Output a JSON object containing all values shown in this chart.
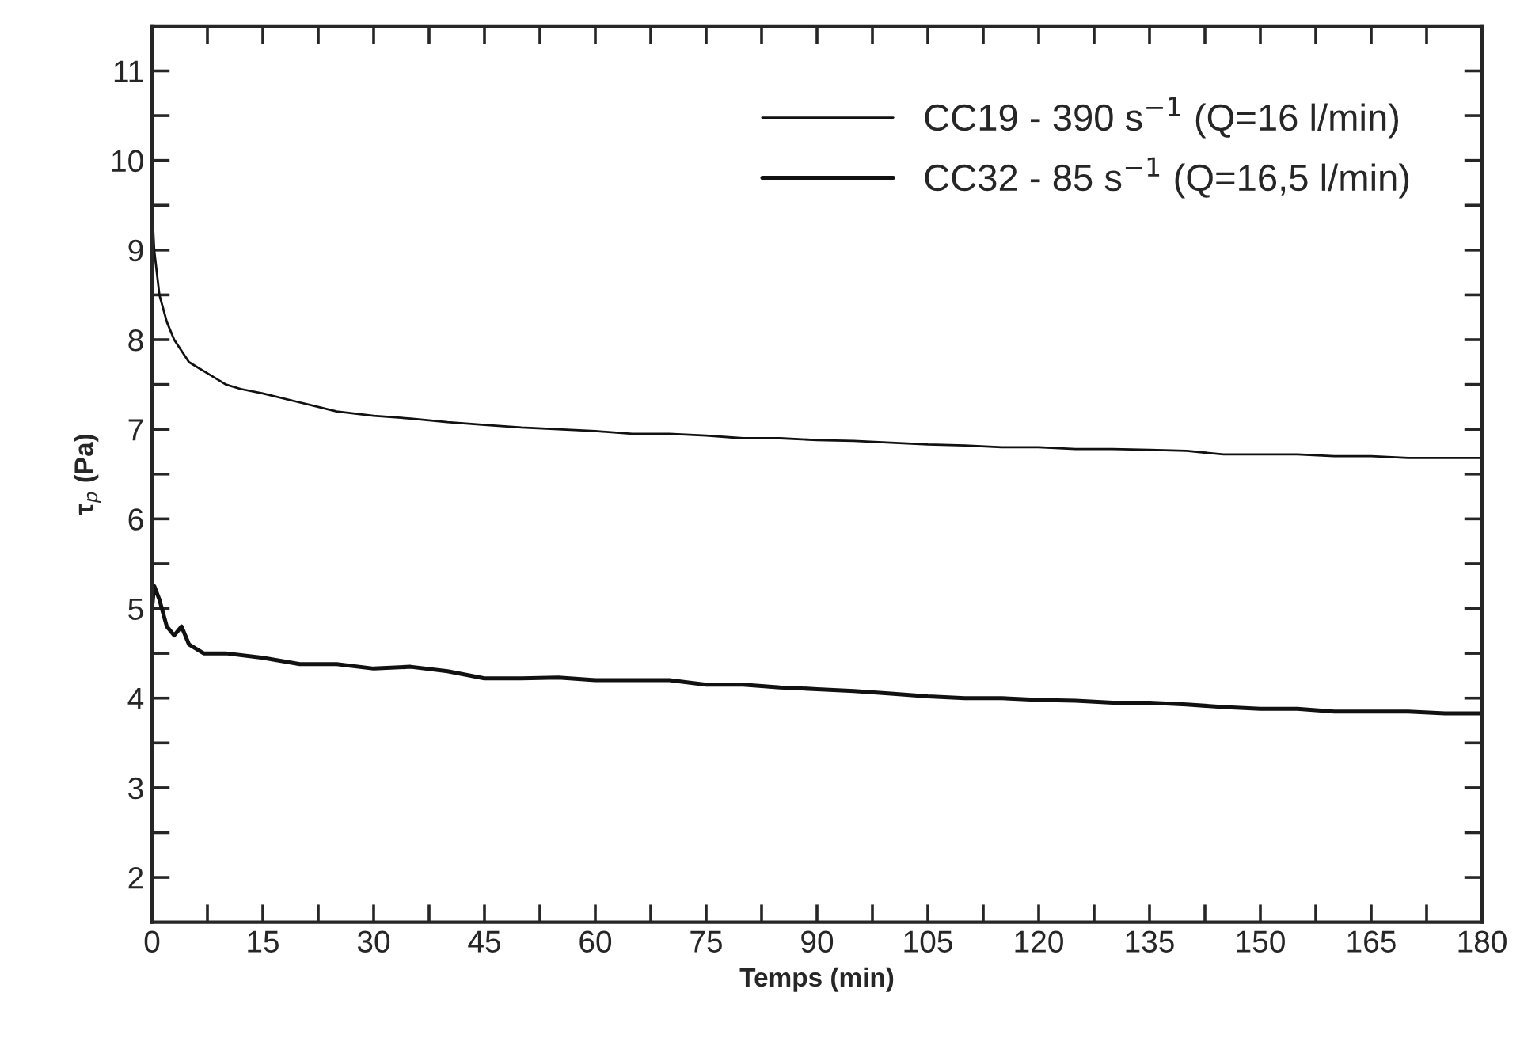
{
  "chart_data": {
    "type": "line",
    "xlabel": "Temps (min)",
    "ylabel": "τ$_{p}$ (Pa)",
    "xlim": [
      0,
      180
    ],
    "ylim": [
      1.5,
      11.5
    ],
    "xticks": [
      0,
      {
        "value": 7.5,
        "label": null
      },
      15,
      {
        "value": 22.5,
        "label": null
      },
      30,
      {
        "value": 37.5,
        "label": null
      },
      45,
      {
        "value": 52.5,
        "label": null
      },
      60,
      {
        "value": 67.5,
        "label": null
      },
      75,
      {
        "value": 82.5,
        "label": null
      },
      90,
      {
        "value": 97.5,
        "label": null
      },
      105,
      {
        "value": 112.5,
        "label": null
      },
      120,
      {
        "value": 127.5,
        "label": null
      },
      135,
      {
        "value": 142.5,
        "label": null
      },
      150,
      {
        "value": 157.5,
        "label": null
      },
      165,
      {
        "value": 172.5,
        "label": null
      },
      180
    ],
    "yticks": [
      2,
      {
        "value": 2.5,
        "label": null
      },
      3,
      {
        "value": 3.5,
        "label": null
      },
      4,
      {
        "value": 4.5,
        "label": null
      },
      5,
      {
        "value": 5.5,
        "label": null
      },
      6,
      {
        "value": 6.5,
        "label": null
      },
      7,
      {
        "value": 7.5,
        "label": null
      },
      8,
      {
        "value": 8.5,
        "label": null
      },
      9,
      {
        "value": 9.5,
        "label": null
      },
      10,
      {
        "value": 10.5,
        "label": null
      },
      11
    ],
    "grid": false,
    "legend": "top right",
    "marker": "none",
    "line_style": "solid",
    "series": [
      {
        "name": "CC19 - 390 s$^{−1}$ (Q=16 l/min)",
        "color": "#111111",
        "x": [
          0,
          0.3,
          1,
          2,
          3,
          5,
          7,
          10,
          12,
          15,
          20,
          25,
          30,
          35,
          40,
          45,
          50,
          55,
          60,
          65,
          70,
          75,
          80,
          85,
          90,
          95,
          100,
          105,
          110,
          115,
          120,
          125,
          130,
          135,
          140,
          145,
          150,
          155,
          160,
          165,
          170,
          175,
          180
        ],
        "values": [
          9.5,
          9.0,
          8.5,
          8.2,
          8.0,
          7.75,
          7.65,
          7.5,
          7.45,
          7.4,
          7.3,
          7.2,
          7.15,
          7.12,
          7.08,
          7.05,
          7.02,
          7.0,
          6.98,
          6.95,
          6.95,
          6.93,
          6.9,
          6.9,
          6.88,
          6.87,
          6.85,
          6.83,
          6.82,
          6.8,
          6.8,
          6.78,
          6.78,
          6.77,
          6.76,
          6.72,
          6.72,
          6.72,
          6.7,
          6.7,
          6.68,
          6.68,
          6.68
        ]
      },
      {
        "name": "CC32 - 85 s$^{−1}$ (Q=16,5 l/min)",
        "color": "#111111",
        "x": [
          0,
          0.3,
          1,
          2,
          3,
          4,
          5,
          7,
          10,
          15,
          20,
          25,
          30,
          35,
          40,
          45,
          50,
          55,
          60,
          65,
          70,
          75,
          80,
          85,
          90,
          95,
          100,
          105,
          110,
          115,
          120,
          125,
          130,
          135,
          140,
          145,
          150,
          155,
          160,
          165,
          170,
          175,
          180
        ],
        "values": [
          5.0,
          5.25,
          5.1,
          4.8,
          4.7,
          4.8,
          4.6,
          4.5,
          4.5,
          4.45,
          4.38,
          4.38,
          4.33,
          4.35,
          4.3,
          4.22,
          4.22,
          4.23,
          4.2,
          4.2,
          4.2,
          4.15,
          4.15,
          4.12,
          4.1,
          4.08,
          4.05,
          4.02,
          4.0,
          4.0,
          3.98,
          3.97,
          3.95,
          3.95,
          3.93,
          3.9,
          3.88,
          3.88,
          3.85,
          3.85,
          3.85,
          3.83,
          3.83
        ]
      }
    ]
  }
}
